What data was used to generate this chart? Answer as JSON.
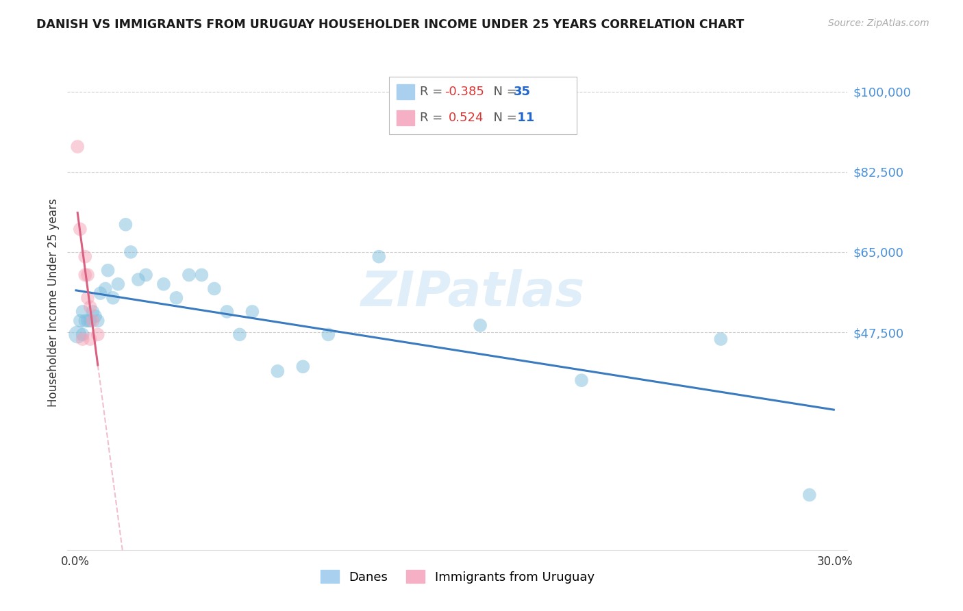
{
  "title": "DANISH VS IMMIGRANTS FROM URUGUAY HOUSEHOLDER INCOME UNDER 25 YEARS CORRELATION CHART",
  "source": "Source: ZipAtlas.com",
  "ylabel": "Householder Income Under 25 years",
  "y_ticks": [
    100000,
    82500,
    65000,
    47500
  ],
  "y_tick_labels": [
    "$100,000",
    "$82,500",
    "$65,000",
    "$47,500"
  ],
  "xlim": [
    -0.003,
    0.305
  ],
  "ylim": [
    0,
    108000
  ],
  "legend_blue_r": "-0.385",
  "legend_blue_n": "35",
  "legend_pink_r": "0.524",
  "legend_pink_n": "11",
  "blue_color": "#7fbfdf",
  "pink_color": "#f4a0b5",
  "trendline_blue": "#3a7abf",
  "trendline_pink": "#d96080",
  "watermark": "ZIPatlas",
  "danes_x": [
    0.001,
    0.002,
    0.003,
    0.003,
    0.004,
    0.005,
    0.006,
    0.007,
    0.008,
    0.009,
    0.01,
    0.012,
    0.013,
    0.015,
    0.017,
    0.02,
    0.022,
    0.025,
    0.028,
    0.035,
    0.04,
    0.045,
    0.05,
    0.055,
    0.06,
    0.065,
    0.07,
    0.08,
    0.09,
    0.1,
    0.12,
    0.16,
    0.2,
    0.255,
    0.29
  ],
  "danes_y": [
    47000,
    50000,
    52000,
    47000,
    50000,
    50000,
    50000,
    52000,
    51000,
    50000,
    56000,
    57000,
    61000,
    55000,
    58000,
    71000,
    65000,
    59000,
    60000,
    58000,
    55000,
    60000,
    60000,
    57000,
    52000,
    47000,
    52000,
    39000,
    40000,
    47000,
    64000,
    49000,
    37000,
    46000,
    12000
  ],
  "uruguay_x": [
    0.001,
    0.002,
    0.003,
    0.004,
    0.004,
    0.005,
    0.005,
    0.006,
    0.006,
    0.007,
    0.009
  ],
  "uruguay_y": [
    88000,
    70000,
    46000,
    64000,
    60000,
    60000,
    55000,
    53000,
    46000,
    50000,
    47000
  ],
  "danes_size": [
    350,
    200,
    200,
    200,
    200,
    200,
    200,
    200,
    200,
    200,
    200,
    200,
    200,
    200,
    200,
    200,
    200,
    200,
    200,
    200,
    200,
    200,
    200,
    200,
    200,
    200,
    200,
    200,
    200,
    200,
    200,
    200,
    200,
    200,
    200
  ],
  "uruguay_size": [
    200,
    200,
    200,
    200,
    200,
    200,
    200,
    200,
    200,
    200,
    200
  ]
}
